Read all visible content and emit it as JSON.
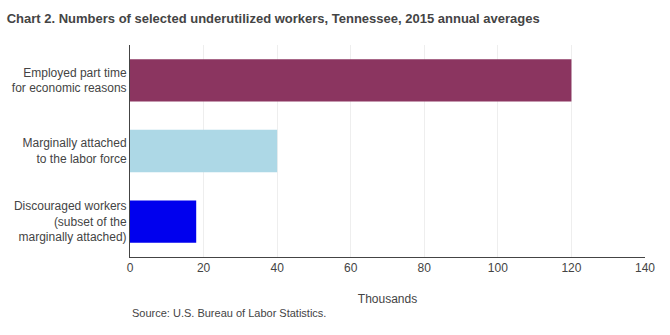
{
  "chart_data": {
    "type": "bar",
    "orientation": "horizontal",
    "title": "Chart 2. Numbers of selected underutilized workers, Tennessee, 2015 annual averages",
    "categories": [
      "Discouraged workers\n(subset of the\nmarginally attached)",
      "Marginally attached\nto the labor force",
      "Employed part time\nfor economic reasons"
    ],
    "values": [
      18,
      40,
      120
    ],
    "colors": [
      "#0000ee",
      "#add8e6",
      "#8b3560"
    ],
    "xlabel": "Thousands",
    "xlim": [
      0,
      140
    ],
    "xticks": [
      0,
      20,
      40,
      60,
      80,
      100,
      120,
      140
    ],
    "grid": true,
    "annotations": [
      "Source: U.S. Bureau of Labor Statistics."
    ]
  }
}
